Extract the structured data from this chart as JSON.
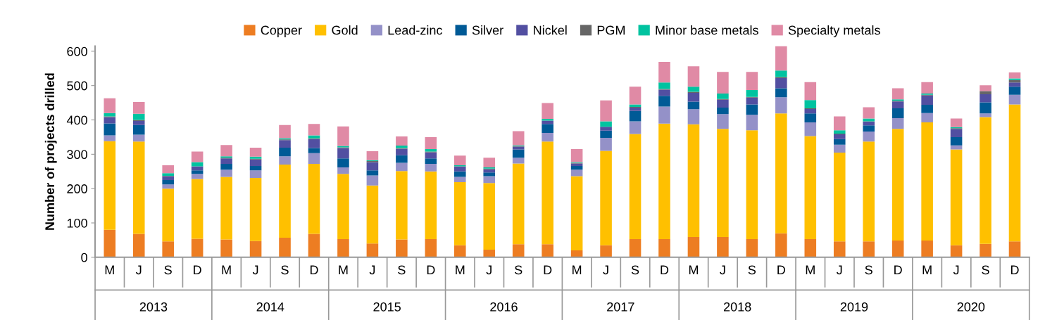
{
  "chart_data": {
    "type": "bar",
    "stacked": true,
    "ylabel": "Number of projects drilled",
    "categories": [
      "M",
      "J",
      "S",
      "D",
      "M",
      "J",
      "S",
      "D",
      "M",
      "J",
      "S",
      "D",
      "M",
      "J",
      "S",
      "D",
      "M",
      "J",
      "S",
      "D",
      "M",
      "J",
      "S",
      "D",
      "M",
      "J",
      "S",
      "D",
      "M",
      "J",
      "S",
      "D"
    ],
    "annotations": [
      "2013",
      "2014",
      "2015",
      "2016",
      "2017",
      "2018",
      "2019",
      "2020"
    ],
    "series": [
      {
        "name": "Copper",
        "color": "#ed7d22",
        "values": [
          80,
          68,
          46,
          54,
          52,
          47,
          57,
          68,
          53,
          40,
          52,
          53,
          35,
          22,
          38,
          38,
          20,
          35,
          53,
          53,
          59,
          59,
          53,
          70,
          53,
          46,
          46,
          49,
          49,
          35,
          39,
          46
        ]
      },
      {
        "name": "Gold",
        "color": "#ffc000",
        "values": [
          258,
          269,
          154,
          174,
          182,
          184,
          213,
          204,
          190,
          169,
          199,
          197,
          184,
          194,
          235,
          299,
          216,
          275,
          306,
          336,
          328,
          315,
          317,
          349,
          300,
          259,
          291,
          325,
          344,
          279,
          369,
          399
        ]
      },
      {
        "name": "Lead-zinc",
        "color": "#9491c8",
        "values": [
          17,
          20,
          12,
          15,
          21,
          22,
          24,
          31,
          19,
          29,
          24,
          22,
          15,
          20,
          17,
          25,
          19,
          38,
          37,
          50,
          44,
          43,
          45,
          47,
          40,
          23,
          29,
          31,
          27,
          12,
          11,
          28
        ]
      },
      {
        "name": "Silver",
        "color": "#005a96",
        "values": [
          35,
          28,
          13,
          10,
          17,
          13,
          25,
          15,
          26,
          15,
          22,
          16,
          16,
          11,
          24,
          26,
          11,
          21,
          30,
          31,
          22,
          19,
          30,
          26,
          26,
          16,
          18,
          29,
          24,
          24,
          32,
          24
        ]
      },
      {
        "name": "Nickel",
        "color": "#524fa1",
        "values": [
          18,
          12,
          11,
          12,
          16,
          19,
          22,
          26,
          30,
          24,
          19,
          18,
          14,
          9,
          8,
          10,
          7,
          11,
          10,
          18,
          26,
          23,
          20,
          30,
          13,
          14,
          11,
          20,
          27,
          24,
          24,
          12
        ]
      },
      {
        "name": "PGM",
        "color": "#666666",
        "values": [
          2,
          3,
          1,
          null,
          2,
          2,
          2,
          2,
          2,
          3,
          2,
          2,
          1,
          2,
          1,
          null,
          2,
          null,
          2,
          2,
          3,
          2,
          2,
          3,
          2,
          2,
          1,
          2,
          2,
          2,
          9,
          7
        ]
      },
      {
        "name": "Minor base metals",
        "color": "#00c3a0",
        "values": [
          10,
          18,
          8,
          12,
          4,
          6,
          4,
          9,
          4,
          3,
          7,
          7,
          3,
          4,
          3,
          5,
          2,
          16,
          7,
          19,
          15,
          16,
          20,
          19,
          24,
          10,
          8,
          4,
          4,
          3,
          null,
          5
        ]
      },
      {
        "name": "Specialty metals",
        "color": "#e08aa5",
        "values": [
          43,
          34,
          23,
          31,
          33,
          26,
          38,
          33,
          57,
          26,
          27,
          35,
          28,
          28,
          41,
          46,
          38,
          61,
          52,
          60,
          59,
          63,
          53,
          71,
          52,
          40,
          33,
          32,
          33,
          25,
          17,
          17
        ]
      }
    ],
    "ylim": [
      0,
      615
    ],
    "yticks": [
      0,
      100,
      200,
      300,
      400,
      500,
      600
    ],
    "grid": false,
    "legend": "top"
  }
}
